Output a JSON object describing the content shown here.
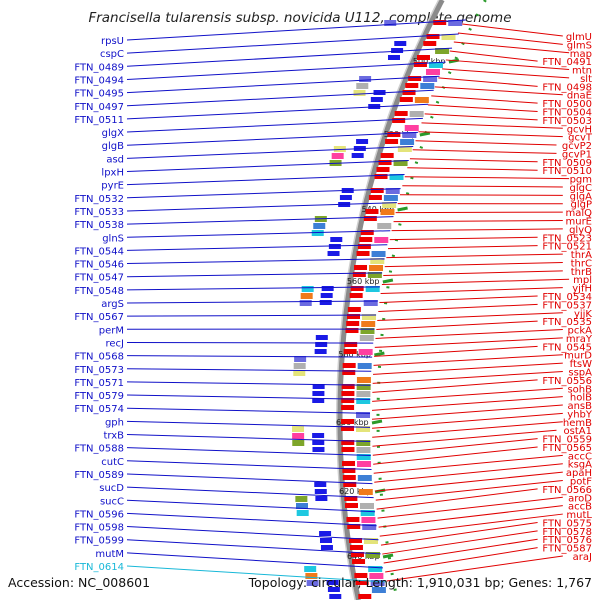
{
  "title": "Francisella tularensis subsp. novicida U112, complete genome",
  "footer": {
    "accession": "Accession: NC_008601",
    "summary": "Topology: circular; Length: 1,910,031 bp; Genes: 1,767"
  },
  "colors": {
    "left_labels": "#1010c8",
    "right_labels": "#e00000",
    "highlight_label": "#18b8d8",
    "backbone": "#8a8a8a",
    "tick": "#2a9a2a"
  },
  "ticks": [
    "500 kbp",
    "520 kbp",
    "540 kbp",
    "560 kbp",
    "580 kbp",
    "600 kbp",
    "620 kbp",
    "640 kbp"
  ],
  "left_labels": [
    "rpsU",
    "cspC",
    "FTN_0489",
    "FTN_0494",
    "FTN_0495",
    "FTN_0497",
    "FTN_0511",
    "glgX",
    "glgB",
    "asd",
    "lpxH",
    "pyrE",
    "FTN_0532",
    "FTN_0533",
    "FTN_0538",
    "glnS",
    "FTN_0544",
    "FTN_0546",
    "FTN_0547",
    "FTN_0548",
    "argS",
    "FTN_0567",
    "perM",
    "recJ",
    "FTN_0568",
    "FTN_0573",
    "FTN_0571",
    "FTN_0579",
    "FTN_0574",
    "gph",
    "trxB",
    "FTN_0588",
    "cutC",
    "FTN_0589",
    "sucD",
    "sucC",
    "FTN_0596",
    "FTN_0598",
    "FTN_0599",
    "mutM",
    "FTN_0614"
  ],
  "right_labels": [
    "glmU",
    "glmS",
    "map",
    "FTN_0491",
    "mtn",
    "slt",
    "FTN_0498",
    "dnaE",
    "FTN_0500",
    "FTN_0504",
    "FTN_0503",
    "gcvH",
    "gcvT",
    "gcvP2",
    "gcvP1",
    "FTN_0509",
    "FTN_0510",
    "pgm",
    "glgC",
    "glgA",
    "glgP",
    "malQ",
    "murE",
    "glyQ",
    "FTN_0523",
    "FTN_0521",
    "thrA",
    "thrC",
    "thrB",
    "mpl",
    "yjfH",
    "FTN_0534",
    "FTN_0537",
    "yjjK",
    "FTN_0535",
    "pckA",
    "mraY",
    "FTN_0545",
    "murD",
    "ftsW",
    "sspA",
    "FTN_0556",
    "sohB",
    "holB",
    "ansB",
    "yhbY",
    "hemB",
    "ostA1",
    "FTN_0559",
    "FTN_0565",
    "accC",
    "ksgA",
    "apaH",
    "potF",
    "FTN_0566",
    "aroD",
    "accB",
    "mutL",
    "FTN_0575",
    "FTN_0578",
    "FTN_0576",
    "FTN_0587",
    "araJ"
  ]
}
